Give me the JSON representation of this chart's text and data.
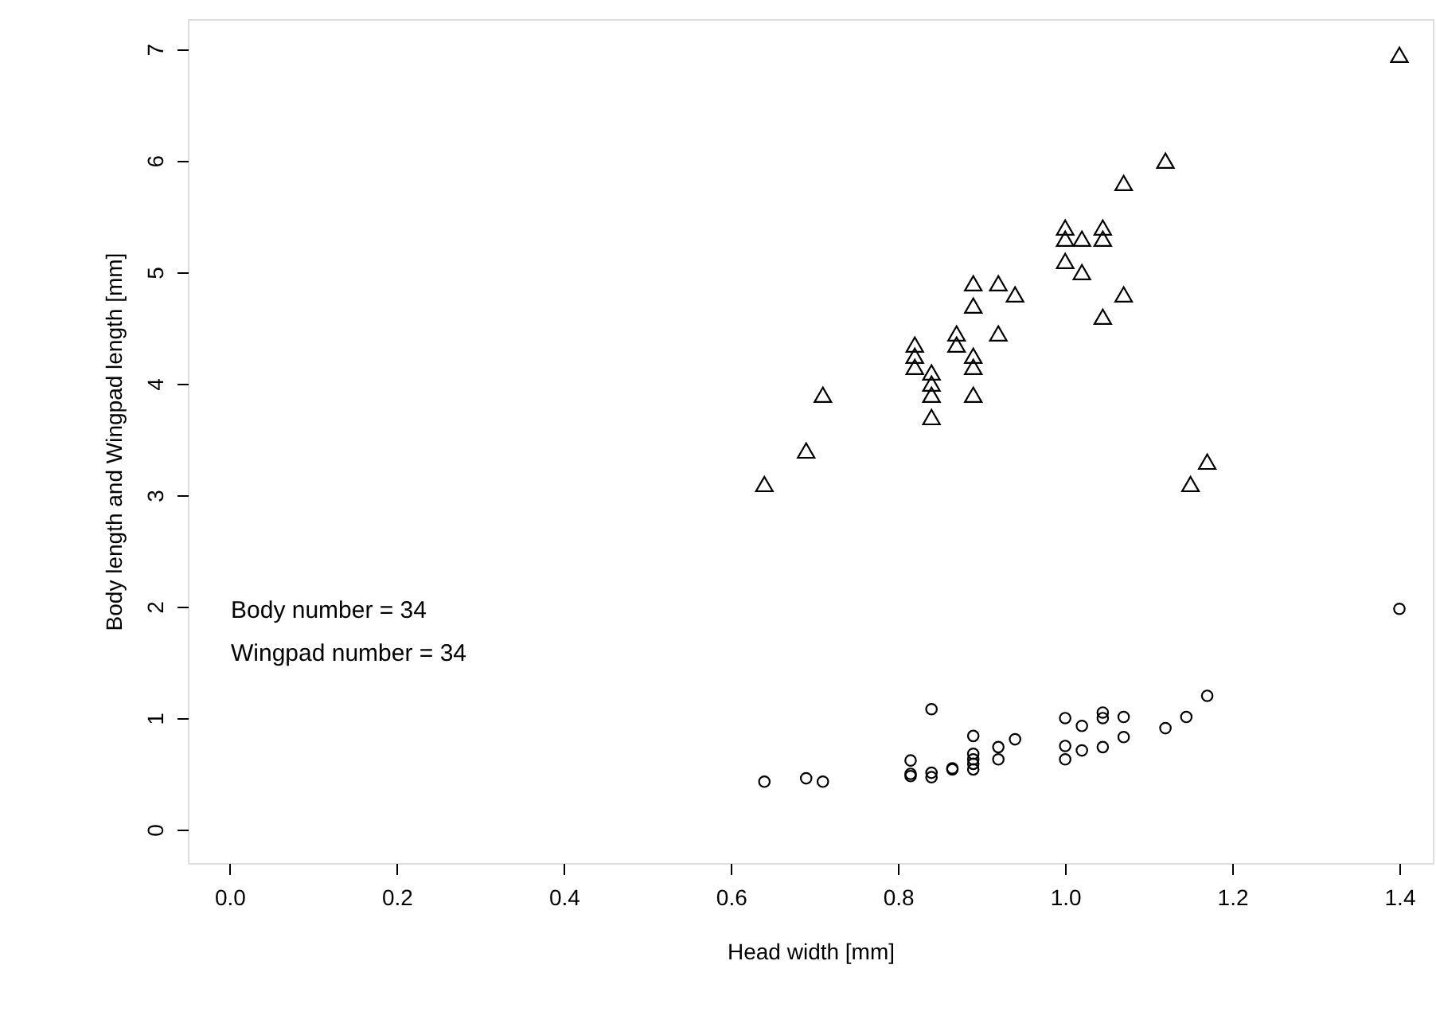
{
  "chart_data": {
    "type": "scatter",
    "xlabel": "Head width [mm]",
    "ylabel": "Body length and Wingpad length [mm]",
    "xlim": [
      -0.05,
      1.44
    ],
    "ylim": [
      -0.3,
      7.27
    ],
    "xticks": [
      {
        "value": 0,
        "label": "0.0"
      },
      0.2,
      0.4,
      0.6,
      0.8,
      {
        "value": 1,
        "label": "1.0"
      },
      1.2,
      1.4
    ],
    "yticks": [
      0,
      1,
      2,
      3,
      4,
      5,
      6,
      7
    ],
    "grid": false,
    "annotations": [
      "Body number = 34",
      "Wingpad number = 34"
    ],
    "series": [
      {
        "color": "#000000",
        "marker": "triangle",
        "x": [
          1.4,
          1.12,
          1.07,
          1.0,
          1.0,
          1.0,
          1.02,
          1.045,
          1.045,
          1.02,
          1.07,
          1.045,
          0.89,
          0.89,
          0.92,
          0.94,
          0.82,
          0.82,
          0.82,
          0.87,
          0.87,
          0.92,
          0.89,
          0.89,
          0.84,
          0.84,
          0.84,
          0.84,
          0.89,
          0.71,
          0.69,
          0.64,
          1.17,
          1.15
        ],
        "values": [
          6.95,
          6.0,
          5.8,
          5.4,
          5.3,
          5.1,
          5.3,
          5.4,
          5.3,
          5.0,
          4.8,
          4.6,
          4.9,
          4.7,
          4.9,
          4.8,
          4.35,
          4.25,
          4.15,
          4.45,
          4.35,
          4.45,
          4.25,
          4.15,
          4.1,
          4.0,
          3.9,
          3.7,
          3.9,
          3.9,
          3.4,
          3.1,
          3.3,
          3.1
        ]
      },
      {
        "color": "#000000",
        "marker": "circle",
        "x": [
          1.4,
          1.17,
          1.145,
          1.12,
          1.07,
          1.07,
          1.045,
          1.045,
          1.045,
          1.02,
          1.02,
          1.0,
          1.0,
          1.0,
          0.94,
          0.92,
          0.92,
          0.89,
          0.89,
          0.89,
          0.89,
          0.89,
          0.865,
          0.865,
          0.84,
          0.84,
          0.84,
          0.815,
          0.815,
          0.815,
          0.71,
          0.69,
          0.64
        ],
        "values": [
          1.98,
          1.2,
          1.01,
          0.91,
          1.01,
          0.83,
          1.05,
          1.0,
          0.74,
          0.93,
          0.71,
          1.0,
          0.75,
          0.63,
          0.81,
          0.74,
          0.63,
          0.84,
          0.68,
          0.63,
          0.59,
          0.54,
          0.54,
          0.55,
          1.08,
          0.51,
          0.47,
          0.62,
          0.48,
          0.5,
          0.43,
          0.46,
          0.43
        ]
      }
    ]
  }
}
